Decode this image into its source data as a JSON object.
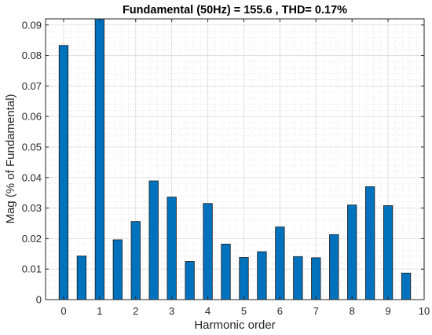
{
  "chart_data": {
    "type": "bar",
    "title": "Fundamental (50Hz) = 155.6 , THD= 0.17%",
    "xlabel": "Harmonic order",
    "ylabel": "Mag (% of Fundamental)",
    "xlim": [
      -0.5,
      10
    ],
    "ylim": [
      0,
      0.092
    ],
    "x_ticks": [
      "0",
      "1",
      "2",
      "3",
      "4",
      "5",
      "6",
      "7",
      "8",
      "9",
      "10"
    ],
    "y_ticks": [
      "0",
      "0.01",
      "0.02",
      "0.03",
      "0.04",
      "0.05",
      "0.06",
      "0.07",
      "0.08",
      "0.09"
    ],
    "bar_width": 0.25,
    "grid": true,
    "minor_grid": true,
    "bar_color": "#0072BD",
    "x": [
      0,
      0.5,
      1,
      1.5,
      2,
      2.5,
      3,
      3.5,
      4,
      4.5,
      5,
      5.5,
      6,
      6.5,
      7,
      7.5,
      8,
      8.5,
      9,
      9.5
    ],
    "values": [
      0.0833,
      0.0143,
      0.092,
      0.0196,
      0.0256,
      0.0389,
      0.0336,
      0.0125,
      0.0315,
      0.0182,
      0.0138,
      0.0157,
      0.0238,
      0.0141,
      0.0137,
      0.0213,
      0.031,
      0.037,
      0.0308,
      0.0087
    ]
  }
}
